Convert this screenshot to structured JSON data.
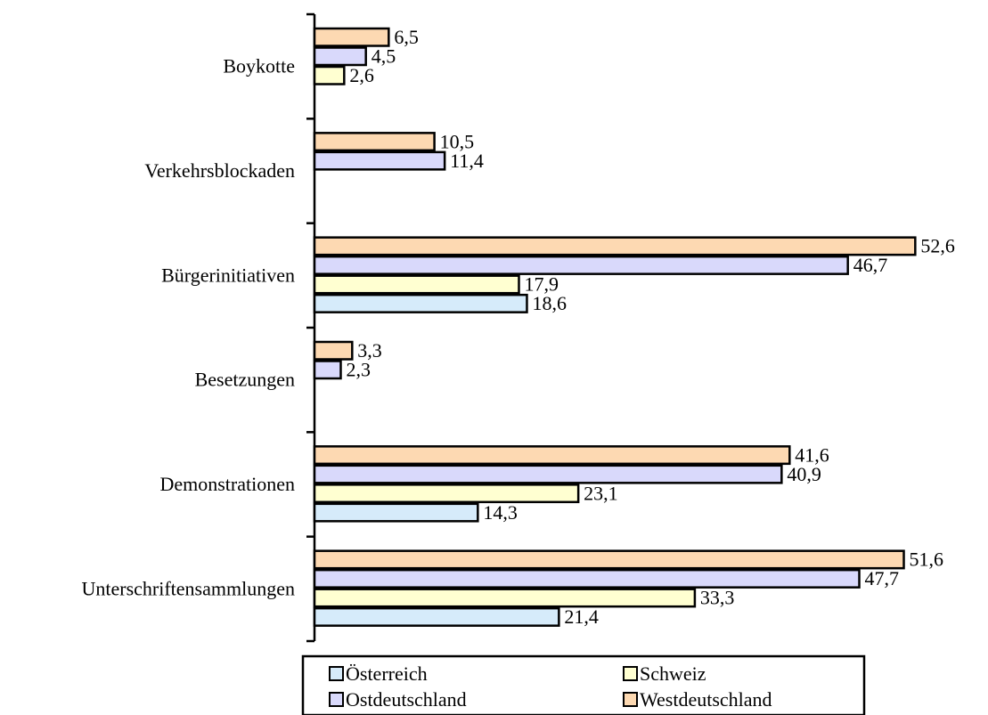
{
  "chart_data": {
    "type": "bar",
    "orientation": "horizontal",
    "categories": [
      "Boykotte",
      "Verkehrsblockaden",
      "Bürgerinitiativen",
      "Besetzungen",
      "Demonstrationen",
      "Unterschriftensammlungen"
    ],
    "series": [
      {
        "name": "Westdeutschland",
        "color": "#FDD9B2",
        "values": [
          6.5,
          10.5,
          52.6,
          3.3,
          41.6,
          51.6
        ],
        "labels": [
          "6,5",
          "10,5",
          "52,6",
          "3,3",
          "41,6",
          "51,6"
        ]
      },
      {
        "name": "Ostdeutschland",
        "color": "#D9D9FB",
        "values": [
          4.5,
          11.4,
          46.7,
          2.3,
          40.9,
          47.7
        ],
        "labels": [
          "4,5",
          "11,4",
          "46,7",
          "2,3",
          "40,9",
          "47,7"
        ]
      },
      {
        "name": "Schweiz",
        "color": "#FFFFD1",
        "values": [
          2.6,
          null,
          17.9,
          null,
          23.1,
          33.3
        ],
        "labels": [
          "2,6",
          "",
          "17,9",
          "",
          "23,1",
          "33,3"
        ]
      },
      {
        "name": "Österreich",
        "color": "#D6EBFA",
        "values": [
          null,
          null,
          18.6,
          null,
          14.3,
          21.4
        ],
        "labels": [
          "",
          "",
          "18,6",
          "",
          "14,3",
          "21,4"
        ]
      }
    ],
    "xlim": [
      0,
      60
    ],
    "grid": false,
    "legend": {
      "placement": "bottom",
      "order": [
        "Österreich",
        "Schweiz",
        "Ostdeutschland",
        "Westdeutschland"
      ]
    }
  }
}
